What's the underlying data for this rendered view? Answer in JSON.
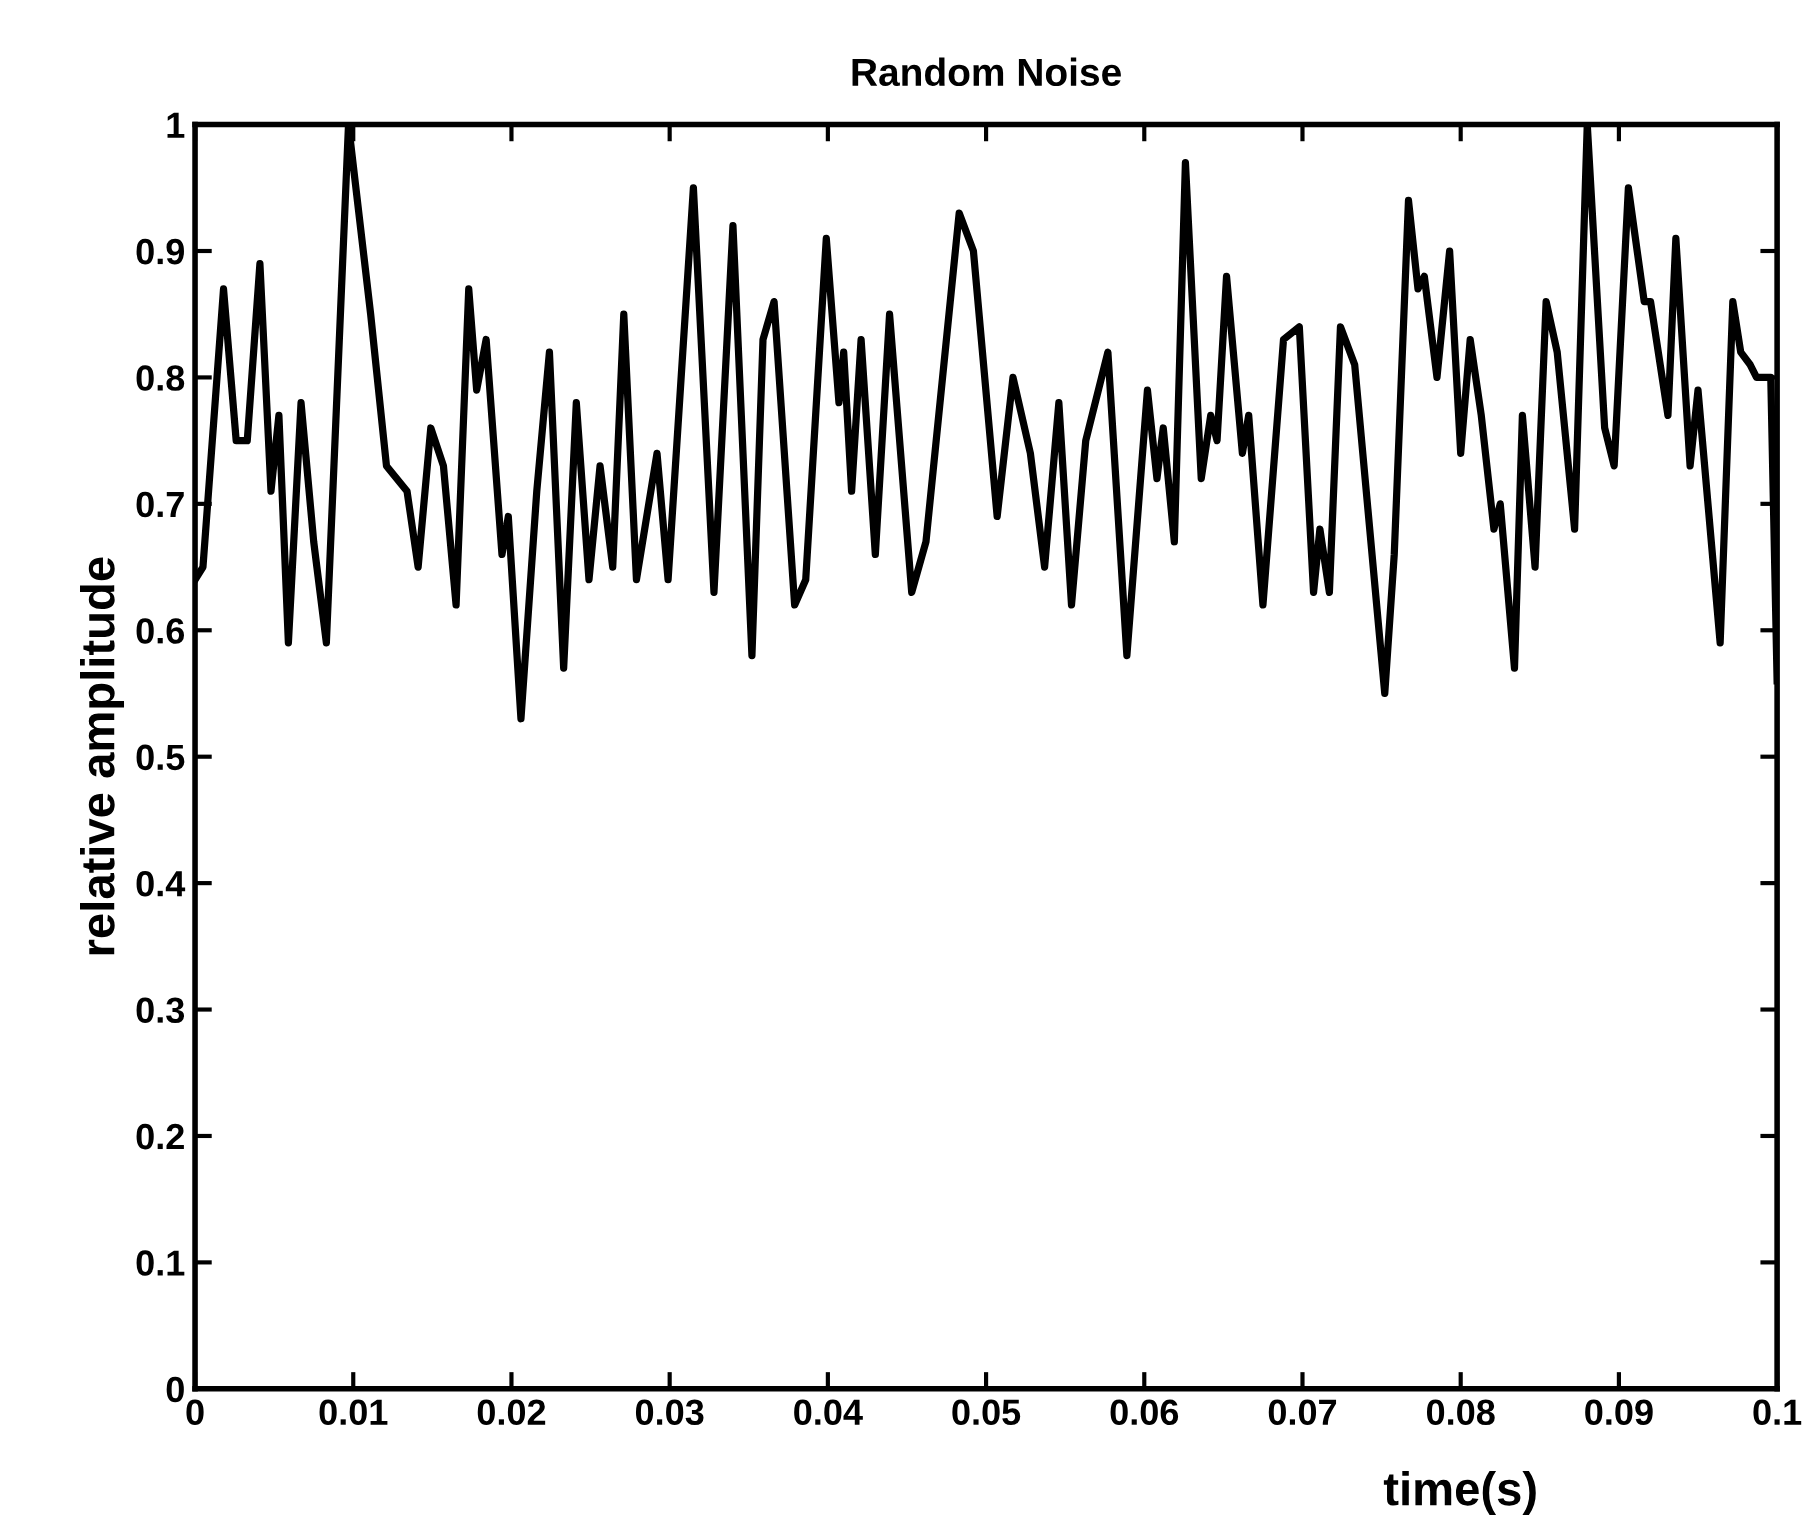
{
  "chart_data": {
    "type": "line",
    "title": "Random Noise",
    "xlabel": "time(s)",
    "ylabel": "relative amplitude",
    "series": [
      {
        "color": "#000000",
        "x": [
          0.0,
          0.0005,
          0.0018,
          0.0026,
          0.0033,
          0.0041,
          0.0048,
          0.0053,
          0.0059,
          0.0067,
          0.0075,
          0.0083,
          0.0097,
          0.0111,
          0.0121,
          0.0134,
          0.0141,
          0.0149,
          0.0157,
          0.0165,
          0.0173,
          0.0178,
          0.0184,
          0.0194,
          0.0198,
          0.0206,
          0.0216,
          0.0224,
          0.0233,
          0.0241,
          0.0249,
          0.0256,
          0.0264,
          0.0271,
          0.0279,
          0.0292,
          0.0299,
          0.0315,
          0.0328,
          0.034,
          0.0352,
          0.0359,
          0.0366,
          0.0379,
          0.0386,
          0.0399,
          0.0407,
          0.041,
          0.0415,
          0.0421,
          0.043,
          0.0439,
          0.0453,
          0.0462,
          0.0483,
          0.0492,
          0.0507,
          0.0517,
          0.0528,
          0.0537,
          0.0546,
          0.0554,
          0.0563,
          0.0577,
          0.0589,
          0.0602,
          0.0608,
          0.0612,
          0.0619,
          0.0626,
          0.0636,
          0.0642,
          0.0646,
          0.0652,
          0.0662,
          0.0666,
          0.0675,
          0.0688,
          0.0698,
          0.0707,
          0.0711,
          0.0717,
          0.0724,
          0.0733,
          0.0752,
          0.0758,
          0.0767,
          0.0773,
          0.0777,
          0.0785,
          0.0793,
          0.08,
          0.0806,
          0.0813,
          0.0821,
          0.0825,
          0.0834,
          0.0839,
          0.0847,
          0.0854,
          0.0861,
          0.0872,
          0.088,
          0.0891,
          0.0897,
          0.0906,
          0.0916,
          0.092,
          0.0931,
          0.0936,
          0.0945,
          0.095,
          0.0964,
          0.0972,
          0.0977,
          0.0983,
          0.0987,
          0.0996,
          0.1
        ],
        "values": [
          0.64,
          0.65,
          0.87,
          0.75,
          0.75,
          0.89,
          0.71,
          0.77,
          0.59,
          0.78,
          0.67,
          0.59,
          1.0,
          0.85,
          0.73,
          0.71,
          0.65,
          0.76,
          0.73,
          0.62,
          0.87,
          0.79,
          0.83,
          0.66,
          0.69,
          0.53,
          0.71,
          0.82,
          0.57,
          0.78,
          0.64,
          0.73,
          0.65,
          0.85,
          0.64,
          0.74,
          0.64,
          0.95,
          0.63,
          0.92,
          0.58,
          0.83,
          0.86,
          0.62,
          0.64,
          0.91,
          0.78,
          0.82,
          0.71,
          0.83,
          0.66,
          0.85,
          0.63,
          0.67,
          0.93,
          0.9,
          0.69,
          0.8,
          0.74,
          0.65,
          0.78,
          0.62,
          0.75,
          0.82,
          0.58,
          0.79,
          0.72,
          0.76,
          0.67,
          0.97,
          0.72,
          0.77,
          0.75,
          0.88,
          0.74,
          0.77,
          0.62,
          0.83,
          0.84,
          0.63,
          0.68,
          0.63,
          0.84,
          0.81,
          0.55,
          0.66,
          0.94,
          0.87,
          0.88,
          0.8,
          0.9,
          0.74,
          0.83,
          0.77,
          0.68,
          0.7,
          0.57,
          0.77,
          0.65,
          0.86,
          0.82,
          0.68,
          1.0,
          0.76,
          0.73,
          0.95,
          0.86,
          0.86,
          0.77,
          0.91,
          0.73,
          0.79,
          0.59,
          0.86,
          0.82,
          0.81,
          0.8,
          0.8,
          0.56
        ]
      }
    ],
    "xlim": [
      0,
      0.1
    ],
    "ylim": [
      0,
      1
    ],
    "xticks": [
      0,
      0.01,
      0.02,
      0.03,
      0.04,
      0.05,
      0.06,
      0.07,
      0.08,
      0.09,
      0.1
    ],
    "yticks": [
      0,
      0.1,
      0.2,
      0.3,
      0.4,
      0.5,
      0.6,
      0.7,
      0.8,
      0.9,
      1
    ],
    "grid": false,
    "legend": false,
    "marker": "none",
    "line_style": "solid"
  }
}
